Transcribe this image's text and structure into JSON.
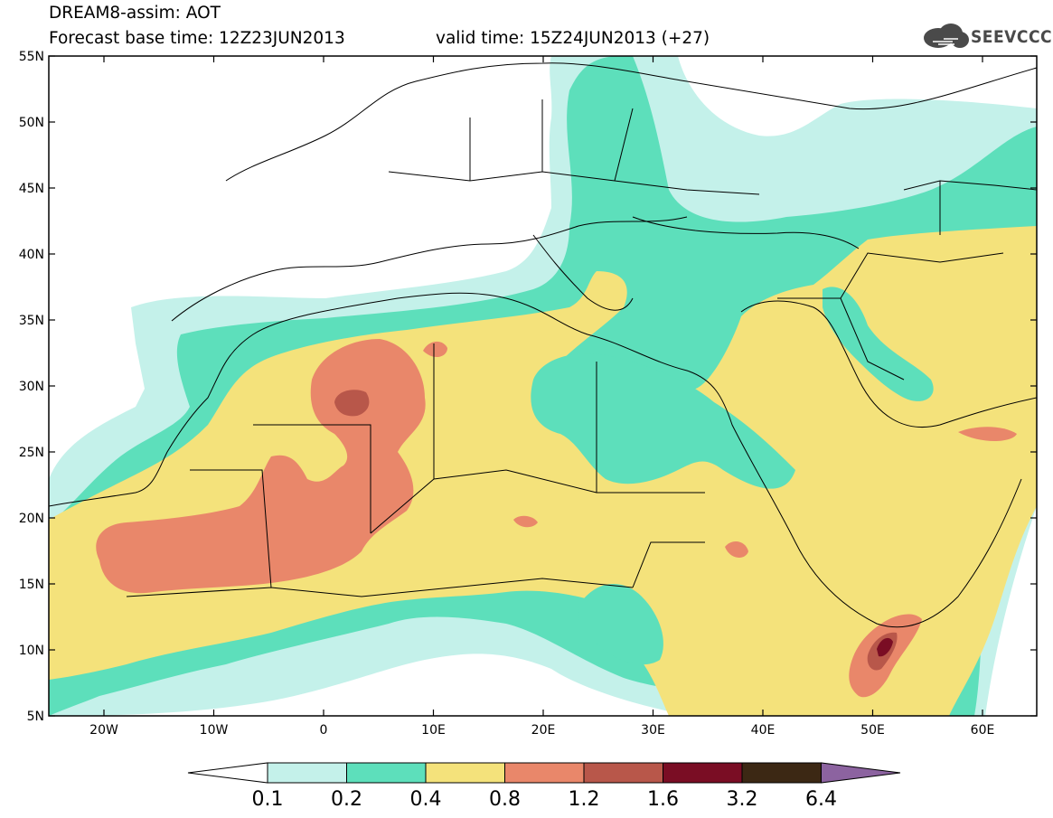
{
  "header": {
    "title": "DREAM8-assim: AOT",
    "base_time": "Forecast base time: 12Z23JUN2013",
    "valid_time": "valid time: 15Z24JUN2013 (+27)"
  },
  "logo": {
    "text": "SEEVCCC",
    "icon": "cloud-logo-icon"
  },
  "map": {
    "lat_labels": [
      "55N",
      "50N",
      "45N",
      "40N",
      "35N",
      "30N",
      "25N",
      "20N",
      "15N",
      "10N",
      "5N"
    ],
    "lon_labels": [
      "20W",
      "10W",
      "0",
      "10E",
      "20E",
      "30E",
      "40E",
      "50E",
      "60E"
    ]
  },
  "colorbar": {
    "labels": [
      "0.1",
      "0.2",
      "0.4",
      "0.8",
      "1.2",
      "1.6",
      "3.2",
      "6.4"
    ],
    "colors": [
      "#c4f1ea",
      "#5ddfbb",
      "#f4e27b",
      "#e9876a",
      "#b8574a",
      "#7a0d24",
      "#3c2814",
      "#8c63a0"
    ]
  }
}
